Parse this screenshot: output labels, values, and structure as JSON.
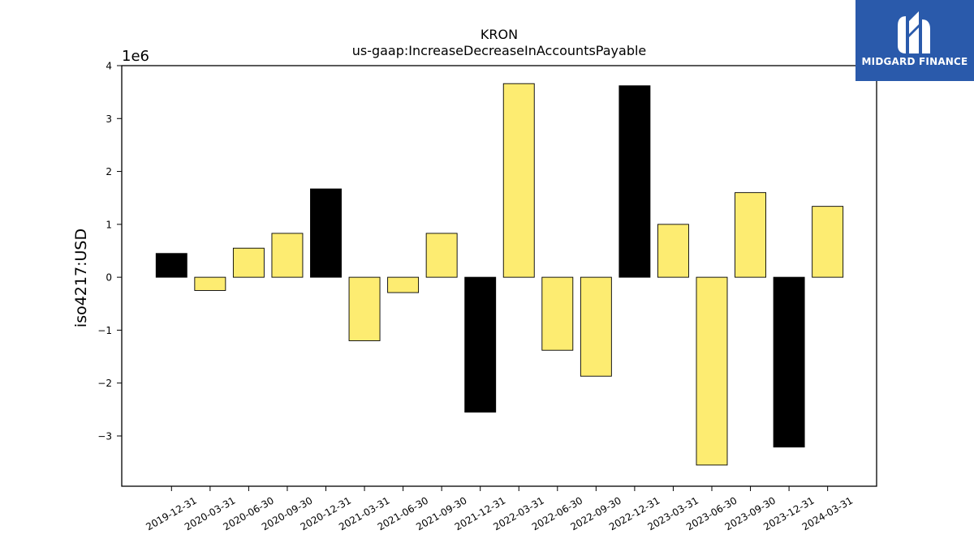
{
  "brand": {
    "name": "MIDGARD FINANCE",
    "logo_icon": "midgard-logo-icon",
    "background_color": "#2a5aab"
  },
  "chart_data": {
    "type": "bar",
    "title": "KRON",
    "subtitle": "us-gaap:IncreaseDecreaseInAccountsPayable",
    "ylabel": "iso4217:USD",
    "xlabel": "",
    "y_scale_label": "1e6",
    "y_multiplier": 1000000,
    "ylim": [
      -3.95,
      4.0
    ],
    "yticks": [
      -3,
      -2,
      -1,
      0,
      1,
      2,
      3,
      4
    ],
    "ytick_labels": [
      "−3",
      "−2",
      "−1",
      "0",
      "1",
      "2",
      "3",
      "4"
    ],
    "categories": [
      "2019-12-31",
      "2020-03-31",
      "2020-06-30",
      "2020-09-30",
      "2020-12-31",
      "2021-03-31",
      "2021-06-30",
      "2021-09-30",
      "2021-12-31",
      "2022-03-31",
      "2022-06-30",
      "2022-09-30",
      "2022-12-31",
      "2023-03-31",
      "2023-06-30",
      "2023-09-30",
      "2023-12-31",
      "2024-03-31"
    ],
    "values": [
      0.45,
      -0.25,
      0.55,
      0.83,
      1.67,
      -1.2,
      -0.29,
      0.83,
      -2.55,
      3.66,
      -1.38,
      -1.87,
      3.62,
      1.0,
      -3.55,
      1.6,
      -3.21,
      1.34
    ],
    "highlight": [
      true,
      false,
      false,
      false,
      true,
      false,
      false,
      false,
      true,
      false,
      false,
      false,
      true,
      false,
      false,
      false,
      true,
      false
    ],
    "colors": {
      "default": "#fdec71",
      "highlight": "#000000",
      "edge": "#000000"
    },
    "grid": false,
    "legend": "none"
  }
}
